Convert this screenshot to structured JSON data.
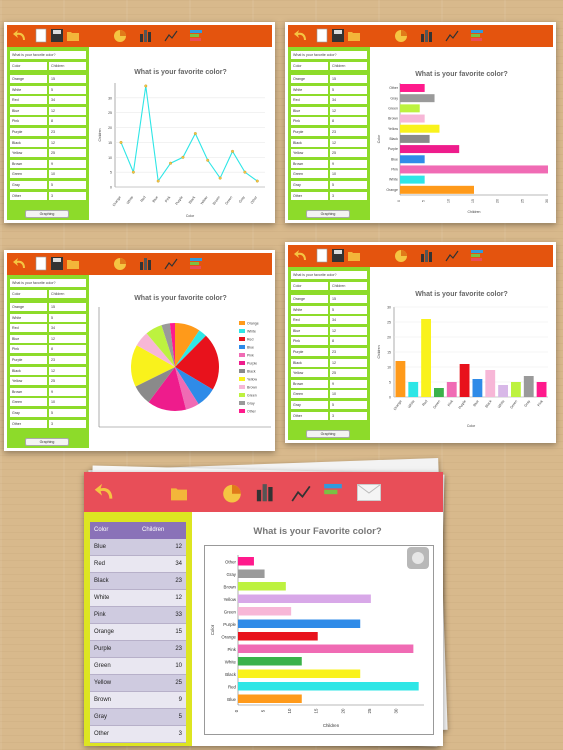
{
  "app": {
    "question_small": "What is your favorite color?",
    "question_big": "What is your Favorite color?",
    "title_box_text": "What is your favorite color?",
    "col_color": "Color",
    "col_children": "Children",
    "graph_button": "Graphing",
    "axis_x_color": "Color",
    "axis_children": "Children"
  },
  "small_rows": [
    {
      "color": "Orange",
      "value": "15"
    },
    {
      "color": "White",
      "value": "5"
    },
    {
      "color": "Red",
      "value": "34"
    },
    {
      "color": "Blue",
      "value": "12"
    },
    {
      "color": "Pink",
      "value": "8"
    },
    {
      "color": "Purple",
      "value": "23"
    },
    {
      "color": "Black",
      "value": "12"
    },
    {
      "color": "Yellow",
      "value": "25"
    },
    {
      "color": "Brown",
      "value": "9"
    },
    {
      "color": "Green",
      "value": "10"
    },
    {
      "color": "Gray",
      "value": "5"
    },
    {
      "color": "Other",
      "value": "3"
    }
  ],
  "big_rows": [
    {
      "color": "Blue",
      "value": "12"
    },
    {
      "color": "Red",
      "value": "34"
    },
    {
      "color": "Black",
      "value": "23"
    },
    {
      "color": "White",
      "value": "12"
    },
    {
      "color": "Pink",
      "value": "33"
    },
    {
      "color": "Orange",
      "value": "15"
    },
    {
      "color": "Purple",
      "value": "23"
    },
    {
      "color": "Green",
      "value": "10"
    },
    {
      "color": "Yellow",
      "value": "25"
    },
    {
      "color": "Brown",
      "value": "9"
    },
    {
      "color": "Gray",
      "value": "5"
    },
    {
      "color": "Other",
      "value": "3"
    }
  ],
  "colors": {
    "orange_bar": "#e4540e",
    "green_side": "#8ddb2a",
    "red_bar": "#e84e58",
    "yellow_side": "#dde521",
    "table_header": "#8a72b8"
  },
  "chart_data": [
    {
      "type": "line",
      "title": "What is your favorite color?",
      "xlabel": "Color",
      "ylabel": "Children",
      "categories": [
        "Orange",
        "White",
        "Red",
        "Blue",
        "Pink",
        "Purple",
        "Black",
        "Yellow",
        "Brown",
        "Green",
        "Gray",
        "Other"
      ],
      "values": [
        15,
        5,
        34,
        2,
        8,
        10,
        18,
        9,
        3,
        12,
        5,
        2
      ],
      "ylim": [
        0,
        35
      ],
      "yticks": [
        0,
        5,
        10,
        15,
        20,
        25,
        30
      ]
    },
    {
      "type": "bar",
      "orientation": "horizontal",
      "title": "What is your favorite color?",
      "xlabel": "Children",
      "ylabel": "Color",
      "categories": [
        "Orange",
        "White",
        "Pink",
        "Blue",
        "Purple",
        "Black",
        "Yellow",
        "Brown",
        "Green",
        "Gray",
        "Other"
      ],
      "values": [
        15,
        5,
        30,
        5,
        12,
        6,
        8,
        5,
        4,
        7,
        5
      ],
      "xlim": [
        0,
        30
      ],
      "xticks": [
        0,
        5,
        10,
        15,
        20,
        25,
        30
      ]
    },
    {
      "type": "pie",
      "title": "What is your favorite color?",
      "categories": [
        "Orange",
        "White",
        "Red",
        "Blue",
        "Pink",
        "Purple",
        "Black",
        "Yellow",
        "Brown",
        "Green",
        "Gray",
        "Other"
      ],
      "values": [
        15,
        5,
        34,
        12,
        8,
        23,
        12,
        25,
        9,
        10,
        5,
        3
      ]
    },
    {
      "type": "bar",
      "title": "What is your favorite color?",
      "xlabel": "Color",
      "ylabel": "Children",
      "categories": [
        "Orange",
        "White",
        "Red",
        "Green",
        "Pink",
        "Purple",
        "Blue",
        "Black",
        "White",
        "Green",
        "Gray",
        "Pink"
      ],
      "values": [
        12,
        5,
        26,
        3,
        5,
        11,
        6,
        9,
        4,
        5,
        7,
        5
      ],
      "ylim": [
        0,
        30
      ],
      "yticks": [
        0,
        5,
        10,
        15,
        20,
        25,
        30
      ]
    },
    {
      "type": "bar",
      "orientation": "horizontal",
      "title": "What is your Favorite color?",
      "xlabel": "Children",
      "ylabel": "Color",
      "categories": [
        "Other",
        "Gray",
        "Brown",
        "Yellow",
        "Green",
        "Purple",
        "Orange",
        "Pink",
        "White",
        "Black",
        "Red",
        "Blue"
      ],
      "values": [
        3,
        5,
        9,
        25,
        10,
        23,
        15,
        33,
        12,
        23,
        34,
        12
      ],
      "xlim": [
        0,
        35
      ],
      "xticks": [
        0,
        5,
        10,
        15,
        20,
        25,
        30
      ]
    }
  ]
}
